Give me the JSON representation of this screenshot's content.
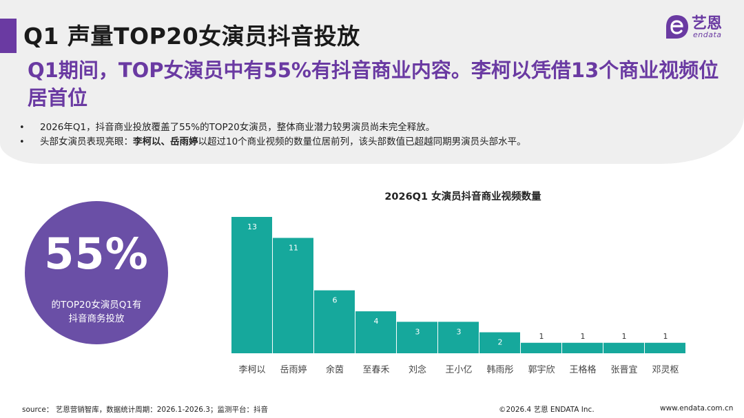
{
  "header": {
    "title": "Q1 声量TOP20女演员抖音投放",
    "subtitle": "Q1期间，TOP女演员中有55%有抖音商业内容。李柯以凭借13个商业视频位居首位"
  },
  "logo": {
    "name_cn": "艺恩",
    "name_en": "endata"
  },
  "bullets": [
    {
      "bold": "",
      "text": "2026年Q1，抖音商业投放覆盖了55%的TOP20女演员，整体商业潜力较男演员尚未完全释放。"
    },
    {
      "prefix": "头部女演员表现亮眼：",
      "bold": "李柯以、岳雨婷",
      "text": "以超过10个商业视频的数量位居前列，该头部数值已超越同期男演员头部水平。"
    }
  ],
  "highlight": {
    "percent": "55%",
    "description_line1": "的TOP20女演员Q1有",
    "description_line2": "抖音商务投放"
  },
  "colors": {
    "accent": "#6a3aa2",
    "circle": "#6a4fa6",
    "bar": "#16a89c",
    "panel": "#efefef"
  },
  "chart_data": {
    "type": "bar",
    "title": "2026Q1 女演员抖音商业视频数量",
    "categories": [
      "李柯以",
      "岳雨婷",
      "余茵",
      "至春禾",
      "刘念",
      "王小亿",
      "韩雨彤",
      "郭宇欣",
      "王格格",
      "张晋宜",
      "邓灵枢"
    ],
    "values": [
      13,
      11,
      6,
      4,
      3,
      3,
      2,
      1,
      1,
      1,
      1
    ],
    "xlabel": "",
    "ylabel": "",
    "ylim": [
      0,
      13
    ]
  },
  "footer": {
    "source": "source： 艺恩营销智库，数据统计周期：2026.1-2026.3；监测平台：抖音",
    "copyright": "©2026.4  艺恩 ENDATA Inc.",
    "url": "www.endata.com.cn"
  }
}
